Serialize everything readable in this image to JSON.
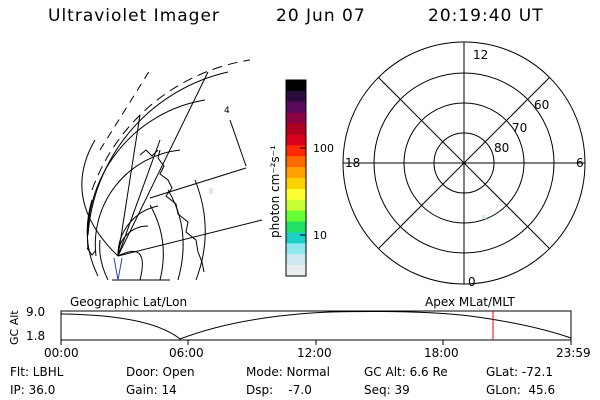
{
  "header": {
    "instrument": "Ultraviolet Imager",
    "date": "20 Jun 07",
    "time": "20:19:40 UT"
  },
  "geo_panel": {
    "label": "Geographic Lat/Lon",
    "marker": "4"
  },
  "colorbar": {
    "label": "photon cm⁻²s⁻¹",
    "ticks": [
      "100",
      "10"
    ],
    "colors": [
      "#000000",
      "#2b0a3d",
      "#5a0a5a",
      "#8a0040",
      "#b00020",
      "#d8001a",
      "#ff2a00",
      "#ff6a00",
      "#ffa000",
      "#ffd000",
      "#ffff33",
      "#c8ff33",
      "#66ff33",
      "#22e066",
      "#1ed0c8",
      "#8ee8f0",
      "#cfe8f0",
      "#e8eef0"
    ]
  },
  "polar_panel": {
    "label": "Apex MLat/MLT",
    "mlt_labels": [
      "12",
      "18",
      "6",
      "0"
    ],
    "lat_labels": [
      "60",
      "70",
      "80"
    ]
  },
  "gc_alt_plot": {
    "ylabel": "GC Alt",
    "yticks": [
      "9.0",
      "1.8"
    ],
    "xticks": [
      "00:00",
      "06:00",
      "12:00",
      "18:00",
      "23:59"
    ],
    "current_time_color": "#ff0000"
  },
  "footer": {
    "row1": {
      "flt": "Flt: LBHL",
      "door": "Door: Open",
      "mode": "Mode: Normal",
      "gcalt": "GC Alt: 6.6 Re",
      "glat": "GLat: -72.1"
    },
    "row2": {
      "ip": "IP: 36.0",
      "gain": "Gain: 14",
      "dsp": "Dsp:    -7.0",
      "seq": "Seq: 39",
      "glon": "GLon:  45.6"
    }
  }
}
